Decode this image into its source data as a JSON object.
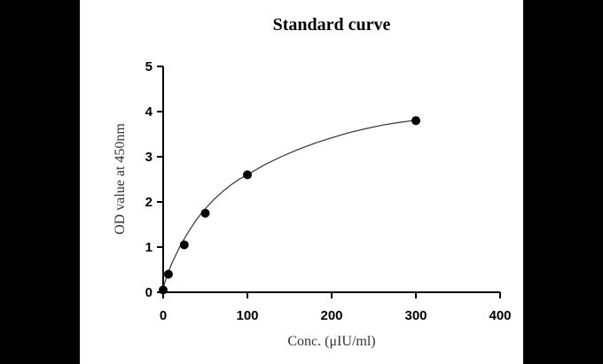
{
  "chart_data": {
    "type": "scatter",
    "title": "Standard curve",
    "xlabel": "Conc. (μIU/ml)",
    "ylabel": "OD value at 450nm",
    "xlim": [
      0,
      400
    ],
    "ylim": [
      0,
      5
    ],
    "xticks": [
      0,
      100,
      200,
      300,
      400
    ],
    "yticks": [
      0,
      1,
      2,
      3,
      4,
      5
    ],
    "grid": false,
    "legend": "none",
    "series": [
      {
        "x": [
          0,
          6.25,
          25,
          50,
          100,
          300
        ],
        "y": [
          0.05,
          0.4,
          1.05,
          1.75,
          2.6,
          3.8
        ]
      }
    ],
    "fit": {
      "type": "curve",
      "x": [
        0,
        5,
        10,
        20,
        30,
        40,
        50,
        60,
        70,
        80,
        90,
        100,
        120,
        140,
        160,
        180,
        200,
        220,
        240,
        260,
        280,
        300
      ],
      "y": [
        0.1,
        0.39,
        0.63,
        1.02,
        1.34,
        1.62,
        1.85,
        2.05,
        2.22,
        2.37,
        2.5,
        2.6,
        2.82,
        3.0,
        3.16,
        3.3,
        3.42,
        3.53,
        3.62,
        3.7,
        3.76,
        3.81
      ]
    },
    "colors": {
      "marker": "#000000",
      "line": "#333333",
      "axis": "#000000"
    }
  }
}
